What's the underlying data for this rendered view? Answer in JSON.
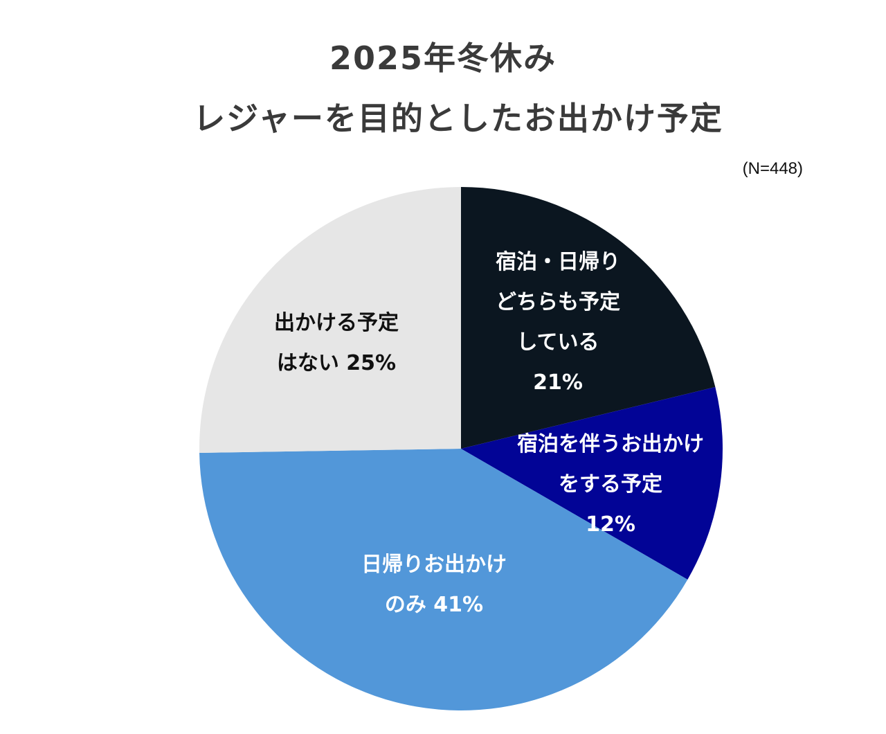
{
  "chart_data": {
    "type": "pie",
    "title": [
      "2025年冬休み",
      "レジャーを目的としたお出かけ予定"
    ],
    "annotation": "(N=448)",
    "slices": [
      {
        "name": "宿泊・日帰りどちらも予定している",
        "value": 21,
        "label_lines": [
          "宿泊・日帰り",
          "どちらも予定",
          "している",
          "21%"
        ],
        "color": "#0b1620",
        "text_color": "#ffffff"
      },
      {
        "name": "宿泊を伴うお出かけをする予定",
        "value": 12,
        "label_lines": [
          "宿泊を伴うお出かけ",
          "をする予定",
          "12%"
        ],
        "color": "#020496",
        "text_color": "#ffffff"
      },
      {
        "name": "日帰りお出かけのみ",
        "value": 41,
        "label_lines": [
          "日帰りお出かけ",
          "のみ 41%"
        ],
        "color": "#5297d9",
        "text_color": "#ffffff"
      },
      {
        "name": "出かける予定はない",
        "value": 25,
        "label_lines": [
          "出かける予定",
          "はない 25%"
        ],
        "color": "#e6e6e6",
        "text_color": "#111111"
      }
    ],
    "start": "12 o'clock",
    "direction": "clockwise"
  }
}
